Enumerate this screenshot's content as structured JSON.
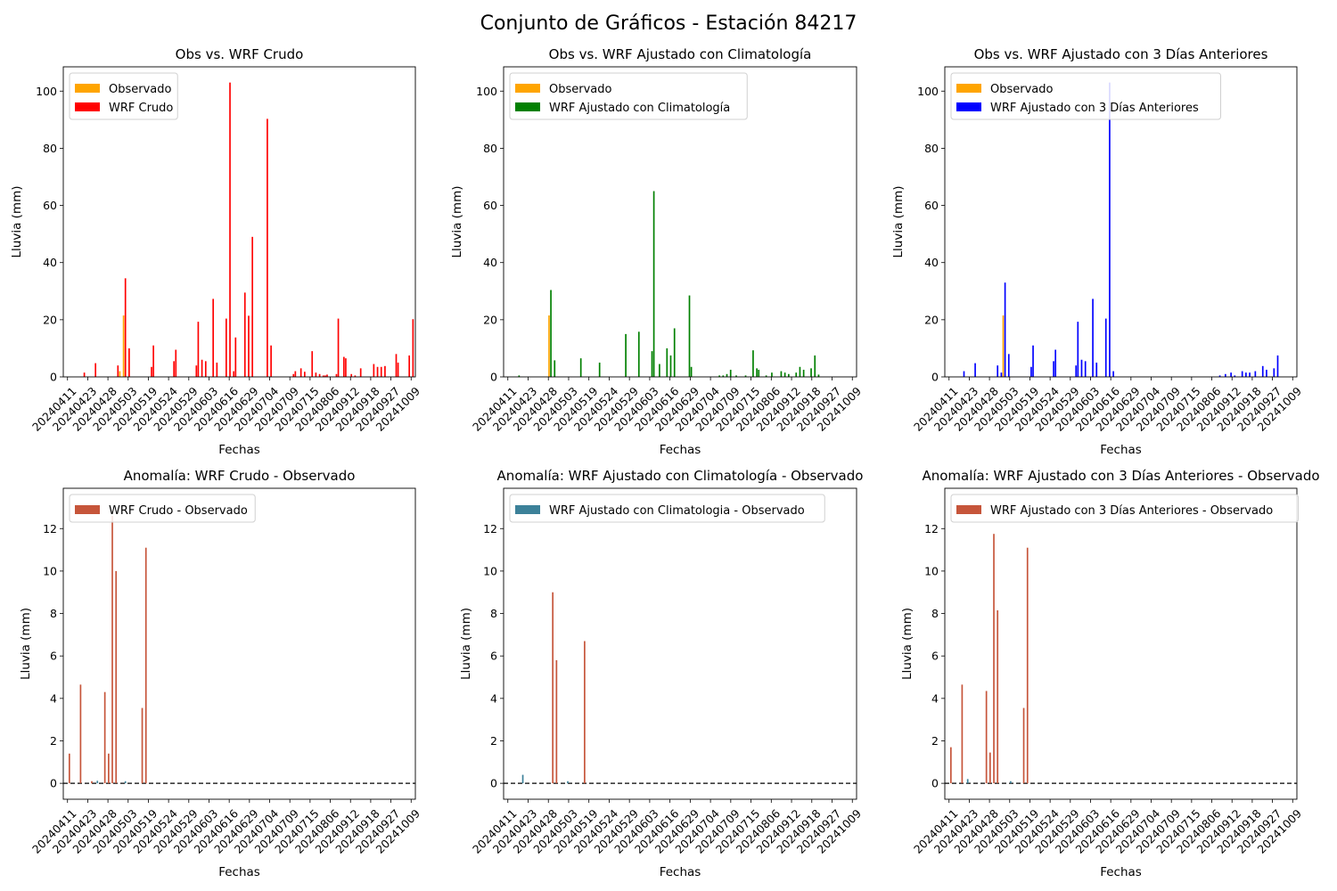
{
  "figure": {
    "suptitle": "Conjunto de Gráficos - Estación 84217"
  },
  "colors": {
    "observado": "#ffa500",
    "wrf_crudo": "#ff0000",
    "wrf_climatologia": "#008000",
    "wrf_3dias": "#0000ff",
    "anomalia_positiva": "#c6553a",
    "anomalia_climatologia_legend": "#3c8199",
    "anomalia_negativa": "#3c8199",
    "zero_line": "#000000"
  },
  "chart_data": [
    {
      "type": "bar",
      "title": "Obs vs. WRF Crudo",
      "xlabel": "Fechas",
      "ylabel": "Lluvia (mm)",
      "ylim": [
        0,
        108.5
      ],
      "yticks": [
        0,
        20,
        40,
        60,
        80,
        100
      ],
      "xrange": [
        0,
        184
      ],
      "xtick_labels": [
        "20240411",
        "20240423",
        "20240428",
        "20240503",
        "20240519",
        "20240524",
        "20240529",
        "20240603",
        "20240616",
        "20240629",
        "20240704",
        "20240709",
        "20240715",
        "20240806",
        "20240912",
        "20240918",
        "20240927",
        "20241009"
      ],
      "legend": [
        "Observado",
        "WRF Crudo"
      ],
      "legend_loc": "upper left",
      "series": [
        {
          "name": "Observado",
          "color": "#ffa500",
          "points": [
            [
              30,
              21.5
            ],
            [
              28,
              2.0
            ]
          ]
        },
        {
          "name": "WRF Crudo",
          "color": "#ff0000",
          "points": [
            [
              9,
              1.5
            ],
            [
              15,
              4.8
            ],
            [
              27,
              4.0
            ],
            [
              31,
              34.5
            ],
            [
              33,
              10.0
            ],
            [
              45,
              3.5
            ],
            [
              46,
              11.0
            ],
            [
              57,
              5.5
            ],
            [
              58,
              9.5
            ],
            [
              69,
              4.0
            ],
            [
              70,
              19.3
            ],
            [
              72,
              6.0
            ],
            [
              74,
              5.5
            ],
            [
              78,
              27.3
            ],
            [
              80,
              5.0
            ],
            [
              85,
              20.4
            ],
            [
              87,
              103.0
            ],
            [
              89,
              2.0
            ],
            [
              90,
              13.8
            ],
            [
              95,
              29.5
            ],
            [
              97,
              21.4
            ],
            [
              99,
              49.0
            ],
            [
              107,
              90.3
            ],
            [
              109,
              11.0
            ],
            [
              121,
              1.0
            ],
            [
              122,
              2.0
            ],
            [
              125,
              3.0
            ],
            [
              127,
              1.8
            ],
            [
              131,
              9.0
            ],
            [
              133,
              1.5
            ],
            [
              135,
              1.0
            ],
            [
              137,
              0.5
            ],
            [
              138,
              0.5
            ],
            [
              139,
              0.8
            ],
            [
              144,
              1.0
            ],
            [
              145,
              20.4
            ],
            [
              148,
              7.0
            ],
            [
              149,
              6.5
            ],
            [
              152,
              1.0
            ],
            [
              154,
              0.5
            ],
            [
              157,
              3.0
            ],
            [
              164,
              4.5
            ],
            [
              166,
              3.5
            ],
            [
              168,
              3.5
            ],
            [
              170,
              3.8
            ],
            [
              176,
              8.0
            ],
            [
              177,
              5.0
            ],
            [
              183,
              7.5
            ],
            [
              185,
              20.2
            ]
          ]
        }
      ]
    },
    {
      "type": "bar",
      "title": "Obs vs. WRF Ajustado con Climatología",
      "xlabel": "Fechas",
      "ylabel": "Lluvia (mm)",
      "ylim": [
        0,
        108.5
      ],
      "yticks": [
        0,
        20,
        40,
        60,
        80,
        100
      ],
      "xrange": [
        0,
        184
      ],
      "xtick_labels": [
        "20240411",
        "20240423",
        "20240428",
        "20240503",
        "20240519",
        "20240524",
        "20240529",
        "20240603",
        "20240616",
        "20240629",
        "20240704",
        "20240709",
        "20240715",
        "20240806",
        "20240912",
        "20240918",
        "20240927",
        "20241009"
      ],
      "legend": [
        "Observado",
        "WRF Ajustado con Climatología"
      ],
      "legend_loc": "upper left",
      "series": [
        {
          "name": "Observado",
          "color": "#ffa500",
          "points": [
            [
              22,
              21.5
            ]
          ]
        },
        {
          "name": "WRF Ajustado con Climatología",
          "color": "#008000",
          "points": [
            [
              6,
              0.5
            ],
            [
              23,
              30.4
            ],
            [
              25,
              5.8
            ],
            [
              39,
              6.5
            ],
            [
              49,
              5.0
            ],
            [
              63,
              15.0
            ],
            [
              70,
              15.8
            ],
            [
              77,
              9.0
            ],
            [
              78,
              65.0
            ],
            [
              81,
              4.5
            ],
            [
              85,
              10.0
            ],
            [
              87,
              7.5
            ],
            [
              89,
              17.0
            ],
            [
              97,
              28.5
            ],
            [
              98,
              3.5
            ],
            [
              113,
              0.5
            ],
            [
              115,
              0.5
            ],
            [
              117,
              1.0
            ],
            [
              119,
              2.5
            ],
            [
              122,
              0.5
            ],
            [
              127,
              0.5
            ],
            [
              131,
              9.3
            ],
            [
              133,
              3.0
            ],
            [
              134,
              2.5
            ],
            [
              138,
              0.5
            ],
            [
              141,
              1.5
            ],
            [
              146,
              2.0
            ],
            [
              148,
              1.5
            ],
            [
              150,
              1.0
            ],
            [
              154,
              1.5
            ],
            [
              156,
              3.5
            ],
            [
              158,
              2.5
            ],
            [
              162,
              3.0
            ],
            [
              164,
              7.5
            ],
            [
              166,
              0.8
            ]
          ]
        }
      ]
    },
    {
      "type": "bar",
      "title": "Obs vs. WRF Ajustado con 3 Días Anteriores",
      "xlabel": "Fechas",
      "ylabel": "Lluvia (mm)",
      "ylim": [
        0,
        108.5
      ],
      "yticks": [
        0,
        20,
        40,
        60,
        80,
        100
      ],
      "xrange": [
        0,
        184
      ],
      "xtick_labels": [
        "20240411",
        "20240423",
        "20240428",
        "20240503",
        "20240519",
        "20240524",
        "20240529",
        "20240603",
        "20240616",
        "20240629",
        "20240704",
        "20240709",
        "20240715",
        "20240806",
        "20240912",
        "20240918",
        "20240927",
        "20241009"
      ],
      "legend": [
        "Observado",
        "WRF Ajustado con 3 Días Anteriores"
      ],
      "legend_loc": "upper left",
      "series": [
        {
          "name": "Observado",
          "color": "#ffa500",
          "points": [
            [
              29,
              21.5
            ]
          ]
        },
        {
          "name": "WRF Ajustado con 3 Días Anteriores",
          "color": "#0000ff",
          "points": [
            [
              8,
              2.0
            ],
            [
              14,
              4.8
            ],
            [
              26,
              4.0
            ],
            [
              28,
              1.5
            ],
            [
              30,
              33.0
            ],
            [
              32,
              8.0
            ],
            [
              44,
              3.5
            ],
            [
              45,
              11.0
            ],
            [
              56,
              5.5
            ],
            [
              57,
              9.5
            ],
            [
              68,
              4.0
            ],
            [
              69,
              19.3
            ],
            [
              71,
              6.0
            ],
            [
              73,
              5.5
            ],
            [
              77,
              27.3
            ],
            [
              79,
              5.0
            ],
            [
              84,
              20.4
            ],
            [
              86,
              103.0
            ],
            [
              88,
              2.0
            ],
            [
              145,
              0.5
            ],
            [
              148,
              1.0
            ],
            [
              151,
              1.5
            ],
            [
              153,
              0.5
            ],
            [
              157,
              2.0
            ],
            [
              159,
              1.5
            ],
            [
              161,
              1.5
            ],
            [
              164,
              2.0
            ],
            [
              168,
              3.8
            ],
            [
              170,
              2.5
            ],
            [
              174,
              3.0
            ],
            [
              176,
              7.5
            ]
          ]
        }
      ]
    },
    {
      "type": "bar",
      "title": "Anomalía: WRF Crudo - Observado",
      "xlabel": "Fechas",
      "ylabel": "Lluvia (mm)",
      "ylim": [
        -0.75,
        13.9
      ],
      "yticks": [
        0,
        2,
        4,
        6,
        8,
        10,
        12
      ],
      "xrange": [
        0,
        184
      ],
      "xtick_labels": [
        "20240411",
        "20240423",
        "20240428",
        "20240503",
        "20240519",
        "20240524",
        "20240529",
        "20240603",
        "20240616",
        "20240629",
        "20240704",
        "20240709",
        "20240715",
        "20240806",
        "20240912",
        "20240918",
        "20240927",
        "20241009"
      ],
      "legend": [
        "WRF Crudo - Observado"
      ],
      "legend_loc": "upper left",
      "zero_line": true,
      "series": [
        {
          "name": "WRF Crudo - Observado",
          "color": "#c6553a",
          "points": [
            [
              1,
              1.4
            ],
            [
              7,
              4.65
            ],
            [
              13,
              0.1
            ],
            [
              20,
              4.3
            ],
            [
              22,
              1.4
            ],
            [
              24,
              12.6
            ],
            [
              26,
              10.0
            ],
            [
              40,
              3.55
            ],
            [
              42,
              11.1
            ]
          ]
        },
        {
          "name": "",
          "color": "#3c8199",
          "points": [
            [
              16,
              0.12
            ],
            [
              31,
              0.1
            ]
          ]
        }
      ]
    },
    {
      "type": "bar",
      "title": "Anomalía: WRF Ajustado con Climatología - Observado",
      "xlabel": "Fechas",
      "ylabel": "Lluvia (mm)",
      "ylim": [
        -0.75,
        13.9
      ],
      "yticks": [
        0,
        2,
        4,
        6,
        8,
        10,
        12
      ],
      "xrange": [
        0,
        184
      ],
      "xtick_labels": [
        "20240411",
        "20240423",
        "20240428",
        "20240503",
        "20240519",
        "20240524",
        "20240529",
        "20240603",
        "20240616",
        "20240629",
        "20240704",
        "20240709",
        "20240715",
        "20240806",
        "20240912",
        "20240918",
        "20240927",
        "20241009"
      ],
      "legend": [
        "WRF Ajustado con Climatologia - Observado"
      ],
      "legend_loc": "upper left",
      "zero_line": true,
      "series": [
        {
          "name": "WRF Ajustado con Climatologia - Observado",
          "color": "#c6553a",
          "points": [
            [
              24,
              9.0
            ],
            [
              26,
              5.8
            ],
            [
              41,
              6.7
            ]
          ]
        },
        {
          "name": "",
          "color": "#3c8199",
          "points": [
            [
              8,
              0.4
            ],
            [
              32,
              0.1
            ]
          ]
        }
      ]
    },
    {
      "type": "bar",
      "title": "Anomalía: WRF Ajustado con 3 Días Anteriores - Observado",
      "xlabel": "Fechas",
      "ylabel": "Lluvia (mm)",
      "ylim": [
        -0.75,
        13.9
      ],
      "yticks": [
        0,
        2,
        4,
        6,
        8,
        10,
        12
      ],
      "xrange": [
        0,
        184
      ],
      "xtick_labels": [
        "20240411",
        "20240423",
        "20240428",
        "20240503",
        "20240519",
        "20240524",
        "20240529",
        "20240603",
        "20240616",
        "20240629",
        "20240704",
        "20240709",
        "20240715",
        "20240806",
        "20240912",
        "20240918",
        "20240927",
        "20241009"
      ],
      "legend": [
        "WRF Ajustado con 3 Días Anteriores - Observado"
      ],
      "legend_loc": "upper left",
      "zero_line": true,
      "series": [
        {
          "name": "WRF Ajustado con 3 Días Anteriores - Observado",
          "color": "#c6553a",
          "points": [
            [
              1,
              1.7
            ],
            [
              7,
              4.65
            ],
            [
              20,
              4.35
            ],
            [
              22,
              1.45
            ],
            [
              24,
              11.75
            ],
            [
              26,
              8.15
            ],
            [
              40,
              3.55
            ],
            [
              42,
              11.1
            ]
          ]
        },
        {
          "name": "",
          "color": "#3c8199",
          "points": [
            [
              10,
              0.2
            ],
            [
              33,
              0.1
            ]
          ]
        }
      ]
    }
  ]
}
